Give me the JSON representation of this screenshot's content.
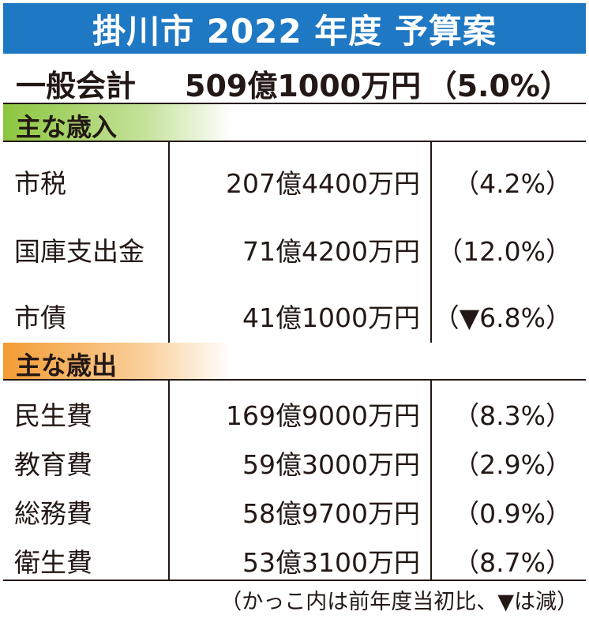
{
  "title": "掛川市 2022 年度 予算案",
  "total": {
    "label": "一般会計",
    "value": "509億1000万円",
    "change": "（5.0%）"
  },
  "revenue": {
    "heading": "主な歳入",
    "heading_color": "#8cc63f",
    "rows": [
      {
        "label": "市税",
        "value": "207億4400万円",
        "change": "（4.2%）"
      },
      {
        "label": "国庫支出金",
        "value": "71億4200万円",
        "change": "（12.0%）"
      },
      {
        "label": "市債",
        "value": "41億1000万円",
        "change": "（▼6.8%）"
      }
    ]
  },
  "expenditure": {
    "heading": "主な歳出",
    "heading_color": "#f39c35",
    "rows": [
      {
        "label": "民生費",
        "value": "169億9000万円",
        "change": "（8.3%）"
      },
      {
        "label": "教育費",
        "value": "59億3000万円",
        "change": "（2.9%）"
      },
      {
        "label": "総務費",
        "value": "58億9700万円",
        "change": "（0.9%）"
      },
      {
        "label": "衛生費",
        "value": "53億3100万円",
        "change": "（8.7%）"
      }
    ]
  },
  "footnote": "（かっこ内は前年度当初比、▼は減）",
  "colors": {
    "title_bar": "#1f78c3",
    "text": "#231815"
  }
}
